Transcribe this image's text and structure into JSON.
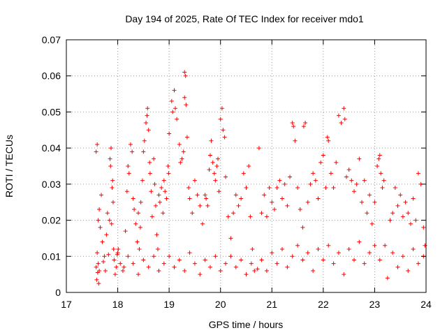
{
  "chart_data": {
    "type": "scatter",
    "title": "Day 194 of 2025, Rate Of TEC Index for receiver mdo1",
    "xlabel": "GPS time / hours",
    "ylabel": "ROTI / TECUs",
    "xlim": [
      17,
      24
    ],
    "ylim": [
      0,
      0.07
    ],
    "xticks": [
      17,
      18,
      19,
      20,
      21,
      22,
      23,
      24
    ],
    "xtick_labels": [
      "17",
      "18",
      "19",
      "20",
      "21",
      "22",
      "23",
      "24"
    ],
    "yticks": [
      0,
      0.01,
      0.02,
      0.03,
      0.04,
      0.05,
      0.06,
      0.07
    ],
    "ytick_labels": [
      "0",
      "0.01",
      "0.02",
      "0.03",
      "0.04",
      "0.05",
      "0.06",
      "0.07"
    ],
    "grid": true,
    "marker": "plus",
    "series_color": "#ff0000",
    "series": [
      {
        "name": "ROTI",
        "points": [
          [
            17.58,
            0.007
          ],
          [
            17.59,
            0.0035
          ],
          [
            17.6,
            0.011
          ],
          [
            17.61,
            0.0055
          ],
          [
            17.62,
            0.008
          ],
          [
            17.63,
            0.0025
          ],
          [
            17.64,
            0.006
          ],
          [
            17.58,
            0.039
          ],
          [
            17.6,
            0.041
          ],
          [
            17.62,
            0.02
          ],
          [
            17.64,
            0.023
          ],
          [
            17.66,
            0.018
          ],
          [
            17.68,
            0.027
          ],
          [
            17.7,
            0.014
          ],
          [
            17.72,
            0.0085
          ],
          [
            17.74,
            0.01
          ],
          [
            17.76,
            0.006
          ],
          [
            17.78,
            0.016
          ],
          [
            17.8,
            0.022
          ],
          [
            17.82,
            0.0105
          ],
          [
            17.84,
            0.02
          ],
          [
            17.85,
            0.037
          ],
          [
            17.86,
            0.035
          ],
          [
            17.87,
            0.04
          ],
          [
            17.88,
            0.019
          ],
          [
            17.89,
            0.029
          ],
          [
            17.9,
            0.031
          ],
          [
            17.91,
            0.025
          ],
          [
            17.92,
            0.012
          ],
          [
            17.93,
            0.009
          ],
          [
            17.95,
            0.005
          ],
          [
            17.97,
            0.007
          ],
          [
            17.99,
            0.0105
          ],
          [
            18.0,
            0.011
          ],
          [
            18.01,
            0.012
          ],
          [
            18.12,
            0.007
          ],
          [
            18.15,
            0.017
          ],
          [
            18.18,
            0.028
          ],
          [
            18.2,
            0.035
          ],
          [
            18.22,
            0.033
          ],
          [
            18.25,
            0.041
          ],
          [
            18.28,
            0.039
          ],
          [
            18.3,
            0.026
          ],
          [
            18.32,
            0.023
          ],
          [
            18.35,
            0.019
          ],
          [
            18.38,
            0.014
          ],
          [
            18.4,
            0.022
          ],
          [
            18.42,
            0.012
          ],
          [
            18.44,
            0.018
          ],
          [
            18.45,
            0.025
          ],
          [
            18.48,
            0.031
          ],
          [
            18.5,
            0.039
          ],
          [
            18.52,
            0.042
          ],
          [
            18.55,
            0.047
          ],
          [
            18.57,
            0.049
          ],
          [
            18.58,
            0.051
          ],
          [
            18.6,
            0.045
          ],
          [
            18.62,
            0.036
          ],
          [
            18.63,
            0.033
          ],
          [
            18.65,
            0.028
          ],
          [
            18.67,
            0.021
          ],
          [
            18.7,
            0.037
          ],
          [
            18.72,
            0.03
          ],
          [
            18.74,
            0.024
          ],
          [
            18.76,
            0.016
          ],
          [
            18.78,
            0.012
          ],
          [
            18.8,
            0.027
          ],
          [
            18.82,
            0.025
          ],
          [
            18.85,
            0.029
          ],
          [
            18.88,
            0.022
          ],
          [
            18.9,
            0.031
          ],
          [
            18.92,
            0.028
          ],
          [
            18.95,
            0.026
          ],
          [
            18.98,
            0.035
          ],
          [
            18.99,
            0.033
          ],
          [
            19.0,
            0.044
          ],
          [
            19.05,
            0.053
          ],
          [
            19.07,
            0.05
          ],
          [
            19.1,
            0.056
          ],
          [
            19.12,
            0.051
          ],
          [
            19.15,
            0.048
          ],
          [
            19.2,
            0.041
          ],
          [
            19.22,
            0.036
          ],
          [
            19.25,
            0.037
          ],
          [
            19.28,
            0.039
          ],
          [
            19.3,
            0.061
          ],
          [
            19.32,
            0.06
          ],
          [
            19.3,
            0.054
          ],
          [
            19.33,
            0.052
          ],
          [
            19.35,
            0.043
          ],
          [
            19.38,
            0.029
          ],
          [
            19.4,
            0.026
          ],
          [
            19.45,
            0.022
          ],
          [
            19.5,
            0.031
          ],
          [
            19.55,
            0.027
          ],
          [
            19.6,
            0.024
          ],
          [
            19.65,
            0.019
          ],
          [
            19.7,
            0.027
          ],
          [
            19.72,
            0.026
          ],
          [
            19.75,
            0.024
          ],
          [
            19.78,
            0.034
          ],
          [
            19.8,
            0.038
          ],
          [
            19.82,
            0.042
          ],
          [
            19.85,
            0.036
          ],
          [
            19.88,
            0.033
          ],
          [
            19.9,
            0.031
          ],
          [
            19.93,
            0.035
          ],
          [
            19.95,
            0.037
          ],
          [
            19.97,
            0.028
          ],
          [
            20.0,
            0.048
          ],
          [
            20.03,
            0.051
          ],
          [
            20.05,
            0.045
          ],
          [
            20.08,
            0.043
          ],
          [
            20.1,
            0.032
          ],
          [
            20.15,
            0.021
          ],
          [
            20.2,
            0.015
          ],
          [
            20.25,
            0.022
          ],
          [
            20.3,
            0.027
          ],
          [
            20.35,
            0.024
          ],
          [
            20.4,
            0.026
          ],
          [
            20.45,
            0.033
          ],
          [
            20.5,
            0.029
          ],
          [
            20.55,
            0.035
          ],
          [
            20.58,
            0.021
          ],
          [
            20.62,
            0.012
          ],
          [
            20.66,
            0.006
          ],
          [
            20.72,
            0.0065
          ],
          [
            20.75,
            0.04
          ],
          [
            20.8,
            0.022
          ],
          [
            20.85,
            0.027
          ],
          [
            20.9,
            0.021
          ],
          [
            20.95,
            0.029
          ],
          [
            21.0,
            0.025
          ],
          [
            21.05,
            0.023
          ],
          [
            21.1,
            0.029
          ],
          [
            21.15,
            0.031
          ],
          [
            21.2,
            0.026
          ],
          [
            21.25,
            0.03
          ],
          [
            21.3,
            0.024
          ],
          [
            21.35,
            0.032
          ],
          [
            21.4,
            0.047
          ],
          [
            21.42,
            0.046
          ],
          [
            21.45,
            0.042
          ],
          [
            21.5,
            0.029
          ],
          [
            21.55,
            0.023
          ],
          [
            21.6,
            0.018
          ],
          [
            21.62,
            0.046
          ],
          [
            21.65,
            0.047
          ],
          [
            21.7,
            0.025
          ],
          [
            21.75,
            0.03
          ],
          [
            21.8,
            0.033
          ],
          [
            21.85,
            0.031
          ],
          [
            21.9,
            0.026
          ],
          [
            21.95,
            0.036
          ],
          [
            22.0,
            0.038
          ],
          [
            22.05,
            0.029
          ],
          [
            22.08,
            0.043
          ],
          [
            22.1,
            0.042
          ],
          [
            22.15,
            0.033
          ],
          [
            22.2,
            0.029
          ],
          [
            22.25,
            0.036
          ],
          [
            22.3,
            0.049
          ],
          [
            22.35,
            0.047
          ],
          [
            22.4,
            0.051
          ],
          [
            22.42,
            0.048
          ],
          [
            22.45,
            0.032
          ],
          [
            22.5,
            0.034
          ],
          [
            22.55,
            0.031
          ],
          [
            22.6,
            0.028
          ],
          [
            22.65,
            0.03
          ],
          [
            22.7,
            0.037
          ],
          [
            22.75,
            0.025
          ],
          [
            22.8,
            0.031
          ],
          [
            22.85,
            0.022
          ],
          [
            22.9,
            0.027
          ],
          [
            22.95,
            0.019
          ],
          [
            23.0,
            0.025
          ],
          [
            23.05,
            0.035
          ],
          [
            23.08,
            0.037
          ],
          [
            23.1,
            0.038
          ],
          [
            23.12,
            0.033
          ],
          [
            23.15,
            0.029
          ],
          [
            23.18,
            0.031
          ],
          [
            23.2,
            0.013
          ],
          [
            23.25,
            0.004
          ],
          [
            23.3,
            0.02
          ],
          [
            23.35,
            0.022
          ],
          [
            23.4,
            0.029
          ],
          [
            23.45,
            0.024
          ],
          [
            23.5,
            0.027
          ],
          [
            23.55,
            0.021
          ],
          [
            23.6,
            0.025
          ],
          [
            23.65,
            0.022
          ],
          [
            23.7,
            0.019
          ],
          [
            23.75,
            0.026
          ],
          [
            23.8,
            0.02
          ],
          [
            23.85,
            0.033
          ],
          [
            23.9,
            0.03
          ],
          [
            23.95,
            0.018
          ],
          [
            23.98,
            0.013
          ],
          [
            18.05,
            0.008
          ],
          [
            18.1,
            0.006
          ],
          [
            18.2,
            0.01
          ],
          [
            18.3,
            0.008
          ],
          [
            18.4,
            0.005
          ],
          [
            18.5,
            0.009
          ],
          [
            18.6,
            0.007
          ],
          [
            18.7,
            0.01
          ],
          [
            18.8,
            0.006
          ],
          [
            18.9,
            0.008
          ],
          [
            19.0,
            0.01
          ],
          [
            19.1,
            0.007
          ],
          [
            19.2,
            0.009
          ],
          [
            19.3,
            0.006
          ],
          [
            19.4,
            0.011
          ],
          [
            19.5,
            0.008
          ],
          [
            19.6,
            0.005
          ],
          [
            19.7,
            0.009
          ],
          [
            19.8,
            0.007
          ],
          [
            19.9,
            0.01
          ],
          [
            20.0,
            0.006
          ],
          [
            20.1,
            0.008
          ],
          [
            20.2,
            0.01
          ],
          [
            20.3,
            0.007
          ],
          [
            20.4,
            0.009
          ],
          [
            20.5,
            0.005
          ],
          [
            20.6,
            0.008
          ],
          [
            20.8,
            0.009
          ],
          [
            20.9,
            0.006
          ],
          [
            21.0,
            0.011
          ],
          [
            21.1,
            0.008
          ],
          [
            21.2,
            0.012
          ],
          [
            21.3,
            0.007
          ],
          [
            21.4,
            0.01
          ],
          [
            21.5,
            0.013
          ],
          [
            21.6,
            0.009
          ],
          [
            21.7,
            0.011
          ],
          [
            21.8,
            0.006
          ],
          [
            21.9,
            0.012
          ],
          [
            22.0,
            0.009
          ],
          [
            22.1,
            0.013
          ],
          [
            22.2,
            0.008
          ],
          [
            22.3,
            0.011
          ],
          [
            22.4,
            0.005
          ],
          [
            22.5,
            0.012
          ],
          [
            22.6,
            0.009
          ],
          [
            22.7,
            0.014
          ],
          [
            22.8,
            0.008
          ],
          [
            22.9,
            0.011
          ],
          [
            23.0,
            0.013
          ],
          [
            23.1,
            0.009
          ],
          [
            23.35,
            0.011
          ],
          [
            23.45,
            0.007
          ],
          [
            23.55,
            0.01
          ],
          [
            23.65,
            0.006
          ],
          [
            23.75,
            0.012
          ],
          [
            23.85,
            0.008
          ],
          [
            23.95,
            0.01
          ]
        ]
      }
    ]
  }
}
